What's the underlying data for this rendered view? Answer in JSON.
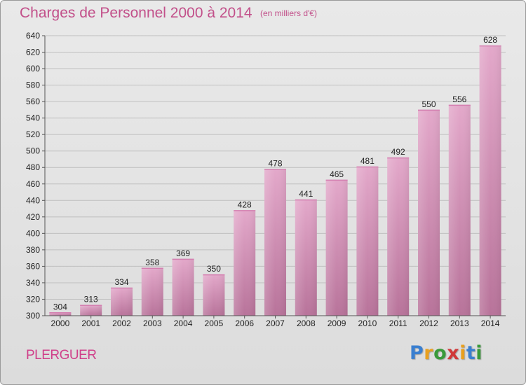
{
  "title": "Charges de Personnel 2000 à 2014",
  "subtitle": "(en milliers d'€)",
  "commune": "PLERGUER",
  "logo": {
    "letters": [
      "P",
      "r",
      "o",
      "x",
      "i",
      "t",
      "i"
    ],
    "colors": [
      "#3a7fd0",
      "#e8a020",
      "#3a9a3a",
      "#d03a3a",
      "#e8a020",
      "#3a7fd0",
      "#3a9a3a"
    ]
  },
  "colors": {
    "bar_top": "#e3a8ca",
    "bar_bottom": "#b8739a",
    "title": "#c2508a"
  },
  "chart_data": {
    "type": "bar",
    "categories": [
      "2000",
      "2001",
      "2002",
      "2003",
      "2004",
      "2005",
      "2006",
      "2007",
      "2008",
      "2009",
      "2010",
      "2011",
      "2012",
      "2013",
      "2014"
    ],
    "values": [
      304,
      313,
      334,
      358,
      369,
      350,
      428,
      478,
      441,
      465,
      481,
      492,
      550,
      556,
      628
    ],
    "ylim": [
      300,
      640
    ],
    "ytick_step": 20,
    "grid": true
  }
}
